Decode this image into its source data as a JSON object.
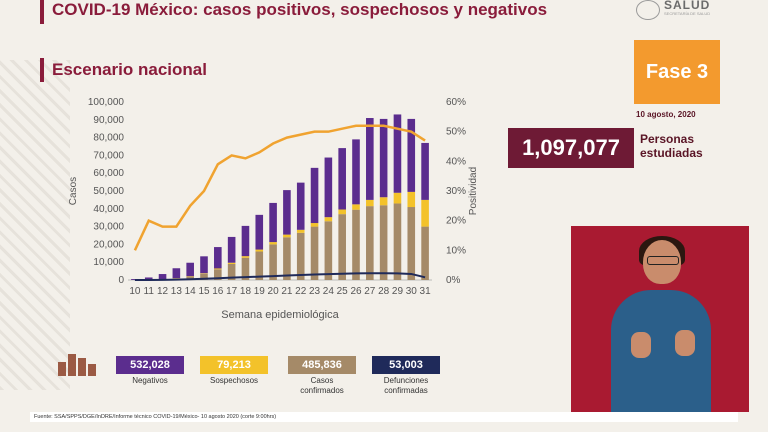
{
  "header": {
    "title": "COVID-19 México: casos positivos, sospechosos y negativos",
    "subtitle": "Escenario nacional",
    "logo_text": "SALUD",
    "logo_subtext": "SECRETARÍA DE SALUD"
  },
  "phase": {
    "label": "Fase 3",
    "date": "10 agosto, 2020"
  },
  "people": {
    "value": "1,097,077",
    "label": "Personas estudiadas"
  },
  "legend": [
    {
      "value": "532,028",
      "label": "Negativos",
      "color": "#5b2d8e"
    },
    {
      "value": "79,213",
      "label": "Sospechosos",
      "color": "#f3c22a"
    },
    {
      "value": "485,836",
      "label": "Casos confirmados",
      "color": "#a58a68"
    },
    {
      "value": "53,003",
      "label": "Defunciones confirmadas",
      "color": "#1f2a5a"
    }
  ],
  "source": "Fuente: SSA/SPPS/DGE/InDRE/Informe técnico COVID-19/México- 10 agosto 2020 (corte 9:00hrs)",
  "chart_data": {
    "type": "bar",
    "xlabel": "Semana epidemiológica",
    "ylabel": "Casos",
    "y2label": "Positividad",
    "ylim": [
      0,
      100000
    ],
    "y2lim": [
      0,
      60
    ],
    "yticks": [
      "0",
      "10,000",
      "20,000",
      "30,000",
      "40,000",
      "50,000",
      "60,000",
      "70,000",
      "80,000",
      "90,000",
      "100,000"
    ],
    "y2ticks": [
      "0%",
      "10%",
      "20%",
      "30%",
      "40%",
      "50%",
      "60%"
    ],
    "categories": [
      "10",
      "11",
      "12",
      "13",
      "14",
      "15",
      "16",
      "17",
      "18",
      "19",
      "20",
      "21",
      "22",
      "23",
      "24",
      "25",
      "26",
      "27",
      "28",
      "29",
      "30",
      "31"
    ],
    "series": [
      {
        "name": "Casos confirmados",
        "color": "#a58a68",
        "values": [
          50,
          200,
          500,
          1000,
          2000,
          3500,
          6000,
          9000,
          12500,
          16000,
          20000,
          24000,
          26500,
          30000,
          33000,
          37000,
          39500,
          41500,
          42000,
          43000,
          41000,
          30000
        ]
      },
      {
        "name": "Sospechosos",
        "color": "#f3c22a",
        "values": [
          5,
          20,
          50,
          100,
          200,
          300,
          500,
          700,
          900,
          1100,
          1300,
          1500,
          1700,
          2000,
          2300,
          2600,
          3000,
          3500,
          4500,
          6000,
          8500,
          15000
        ]
      },
      {
        "name": "Negativos",
        "color": "#5b2d8e",
        "values": [
          500,
          1200,
          2800,
          5500,
          7500,
          9500,
          12000,
          14500,
          17000,
          19500,
          22000,
          25000,
          26500,
          31000,
          33500,
          34500,
          36500,
          46000,
          44000,
          44000,
          41000,
          32000
        ]
      },
      {
        "name": "Defunciones",
        "color": "#1f2a5a",
        "type": "line",
        "values": [
          5,
          30,
          80,
          200,
          400,
          700,
          1000,
          1300,
          1600,
          1900,
          2200,
          2500,
          2800,
          3100,
          3300,
          3500,
          3700,
          3800,
          3800,
          3700,
          3400,
          1500
        ]
      },
      {
        "name": "Positividad",
        "color": "#f0a330",
        "type": "line",
        "axis": "right",
        "values": [
          10,
          20,
          18,
          18,
          25,
          30,
          39,
          42,
          41,
          43,
          46,
          48,
          49,
          50,
          50,
          51,
          52,
          52,
          52,
          51,
          50,
          47
        ]
      }
    ]
  }
}
